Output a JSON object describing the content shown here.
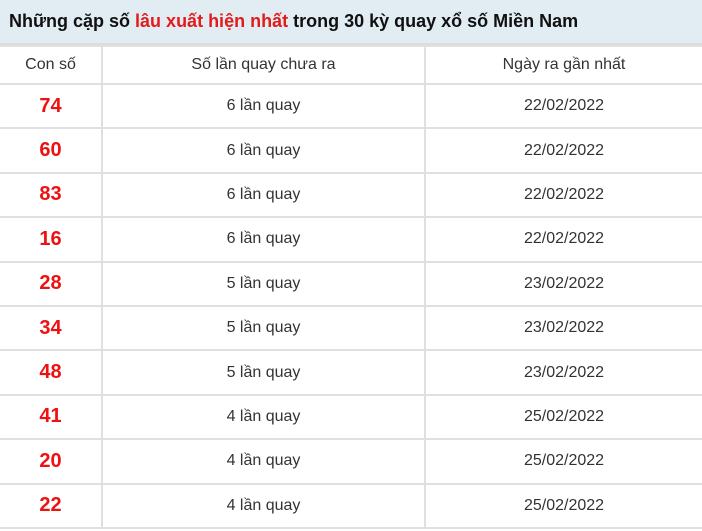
{
  "title": {
    "part1": "Những cặp số ",
    "highlight": "lâu xuất hiện nhất",
    "part2": " trong 30 kỳ quay xổ số Miền Nam"
  },
  "headers": [
    "Con số",
    "Số lần quay chưa ra",
    "Ngày ra gần nhất"
  ],
  "rows": [
    {
      "number": "74",
      "count": "6 lần quay",
      "date": "22/02/2022"
    },
    {
      "number": "60",
      "count": "6 lần quay",
      "date": "22/02/2022"
    },
    {
      "number": "83",
      "count": "6 lần quay",
      "date": "22/02/2022"
    },
    {
      "number": "16",
      "count": "6 lần quay",
      "date": "22/02/2022"
    },
    {
      "number": "28",
      "count": "5 lần quay",
      "date": "23/02/2022"
    },
    {
      "number": "34",
      "count": "5 lần quay",
      "date": "23/02/2022"
    },
    {
      "number": "48",
      "count": "5 lần quay",
      "date": "23/02/2022"
    },
    {
      "number": "41",
      "count": "4 lần quay",
      "date": "25/02/2022"
    },
    {
      "number": "20",
      "count": "4 lần quay",
      "date": "25/02/2022"
    },
    {
      "number": "22",
      "count": "4 lần quay",
      "date": "25/02/2022"
    }
  ],
  "colors": {
    "accent": "#ee1111",
    "header_bg": "#e2ecf3"
  }
}
